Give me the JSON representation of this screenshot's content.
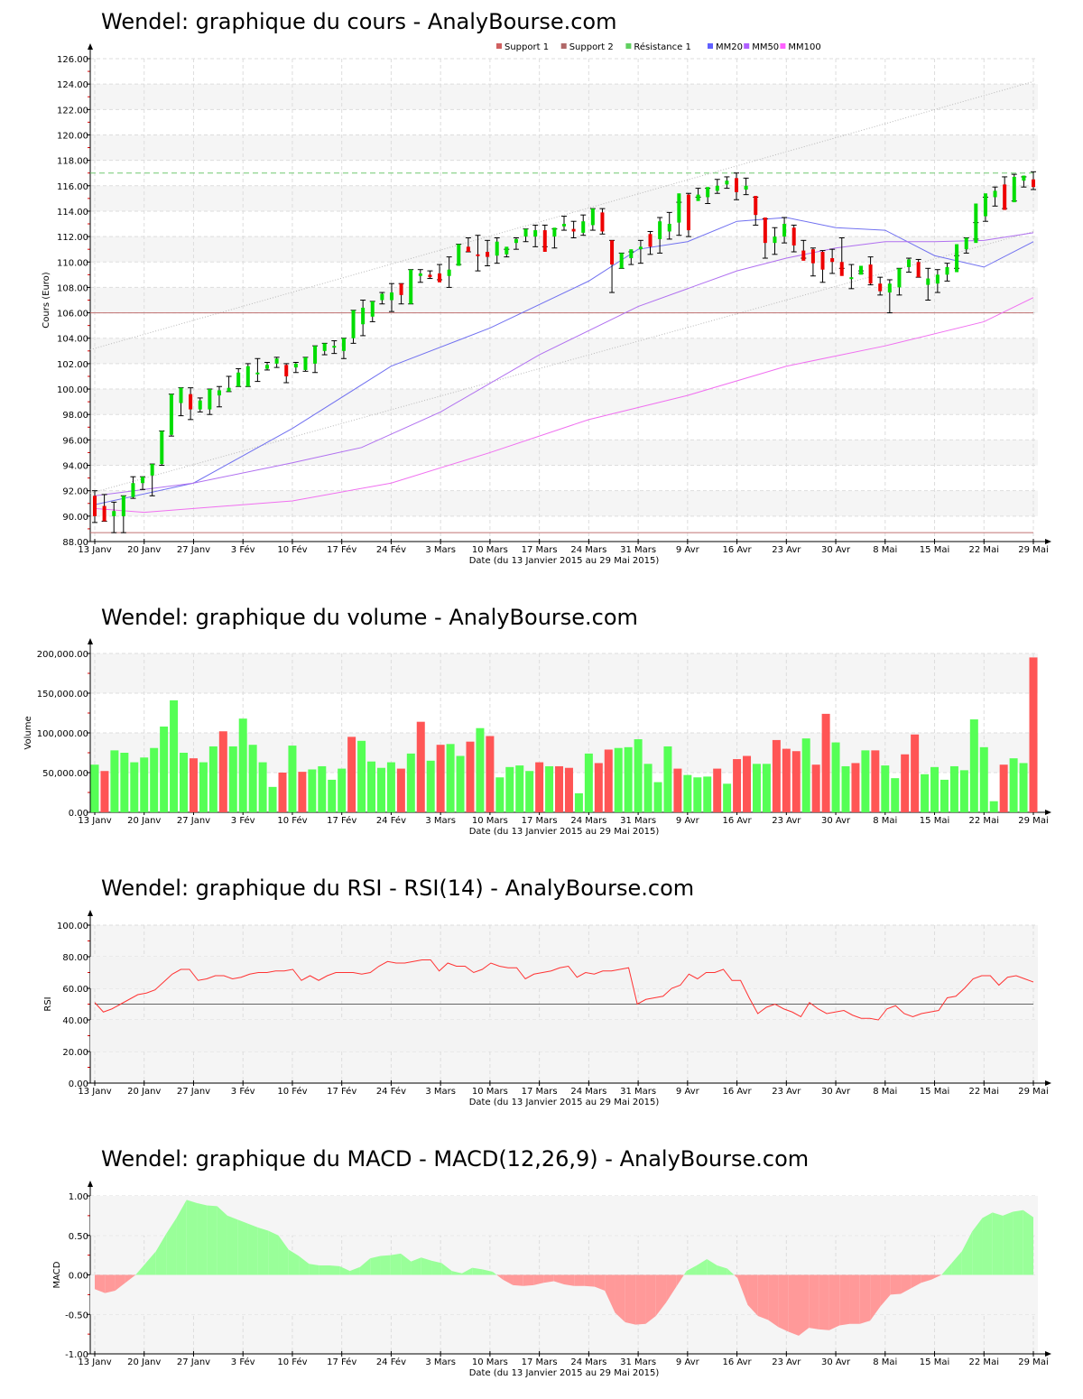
{
  "chart_data": [
    {
      "id": "price",
      "type": "candlestick",
      "title": "Wendel: graphique du cours - AnalyBourse.com",
      "xlabel": "Date (du 13 Janvier 2015 au 29 Mai 2015)",
      "ylabel": "Cours (Euro)",
      "ylim": [
        88,
        126
      ],
      "yticks": [
        "88.00",
        "90.00",
        "92.00",
        "94.00",
        "96.00",
        "98.00",
        "100.00",
        "102.00",
        "104.00",
        "106.00",
        "108.00",
        "110.00",
        "112.00",
        "114.00",
        "116.00",
        "118.00",
        "120.00",
        "122.00",
        "124.00",
        "126.00"
      ],
      "xticks": [
        "13 Janv",
        "20 Janv",
        "27 Janv",
        "3 Fév",
        "10 Fév",
        "17 Fév",
        "24 Fév",
        "3 Mars",
        "10 Mars",
        "17 Mars",
        "24 Mars",
        "31 Mars",
        "9 Avr",
        "16 Avr",
        "23 Avr",
        "30 Avr",
        "8 Mai",
        "15 Mai",
        "22 Mai",
        "29 Mai"
      ],
      "legend": [
        {
          "label": "Support 1",
          "color": "#d06060"
        },
        {
          "label": "Support 2",
          "color": "#b06868"
        },
        {
          "label": "Résistance 1",
          "color": "#60d060"
        },
        {
          "label": "MM20",
          "color": "#6060ff"
        },
        {
          "label": "MM50",
          "color": "#b060ff"
        },
        {
          "label": "MM100",
          "color": "#ff60ff"
        }
      ],
      "levels": {
        "support_1": 106.0,
        "support_2": 88.7,
        "resistance_1": 117.0
      },
      "trend_channel": {
        "upper": [
          103.1,
          124.2
        ],
        "lower": [
          91.8,
          112.4
        ]
      },
      "candles": [
        [
          91.6,
          92.0,
          89.5,
          90.0
        ],
        [
          90.8,
          91.7,
          89.6,
          89.6
        ],
        [
          90.0,
          91.1,
          88.7,
          90.4
        ],
        [
          90.0,
          91.6,
          88.7,
          91.6
        ],
        [
          91.5,
          93.1,
          91.4,
          92.6
        ],
        [
          92.6,
          93.1,
          92.1,
          93.1
        ],
        [
          93.2,
          94.1,
          91.6,
          94.1
        ],
        [
          94.1,
          96.7,
          94.0,
          96.7
        ],
        [
          96.4,
          99.6,
          96.3,
          99.6
        ],
        [
          98.9,
          100.1,
          97.9,
          100.1
        ],
        [
          99.6,
          100.1,
          97.6,
          98.4
        ],
        [
          98.4,
          99.3,
          98.2,
          99.1
        ],
        [
          98.4,
          100.0,
          98.0,
          100.0
        ],
        [
          99.5,
          100.2,
          98.6,
          99.9
        ],
        [
          99.8,
          101.0,
          99.8,
          100.1
        ],
        [
          100.2,
          101.6,
          100.2,
          101.3
        ],
        [
          100.2,
          102.0,
          100.2,
          101.8
        ],
        [
          101.3,
          102.4,
          100.6,
          101.3
        ],
        [
          101.6,
          102.1,
          101.5,
          101.9
        ],
        [
          102.0,
          102.5,
          101.7,
          102.4
        ],
        [
          101.9,
          102.0,
          100.5,
          101.0
        ],
        [
          101.7,
          102.1,
          101.3,
          102.0
        ],
        [
          101.5,
          102.5,
          101.4,
          102.5
        ],
        [
          102.0,
          103.4,
          101.3,
          103.4
        ],
        [
          103.0,
          103.6,
          102.7,
          103.6
        ],
        [
          103.3,
          103.8,
          102.8,
          103.4
        ],
        [
          103.0,
          104.0,
          102.4,
          104.0
        ],
        [
          104.0,
          106.2,
          103.6,
          106.2
        ],
        [
          105.1,
          107.0,
          104.2,
          106.4
        ],
        [
          105.7,
          106.9,
          105.3,
          106.9
        ],
        [
          107.0,
          107.6,
          106.7,
          107.5
        ],
        [
          107.0,
          108.3,
          106.1,
          107.6
        ],
        [
          108.3,
          108.3,
          106.7,
          107.4
        ],
        [
          106.7,
          109.4,
          106.7,
          109.4
        ],
        [
          108.9,
          109.4,
          108.4,
          109.1
        ],
        [
          109.0,
          109.3,
          108.7,
          108.8
        ],
        [
          109.1,
          109.8,
          108.6,
          108.4
        ],
        [
          108.9,
          110.4,
          108.0,
          109.4
        ],
        [
          109.7,
          111.4,
          109.8,
          111.4
        ],
        [
          111.2,
          111.9,
          110.8,
          110.8
        ],
        [
          110.6,
          112.1,
          109.3,
          110.5
        ],
        [
          110.8,
          111.7,
          109.7,
          110.4
        ],
        [
          110.5,
          111.9,
          109.9,
          111.6
        ],
        [
          110.6,
          111.0,
          110.4,
          111.2
        ],
        [
          111.5,
          111.9,
          111.0,
          111.8
        ],
        [
          112.0,
          112.6,
          111.6,
          112.6
        ],
        [
          112.0,
          112.9,
          111.2,
          112.5
        ],
        [
          112.5,
          112.9,
          111.2,
          110.8
        ],
        [
          112.0,
          112.6,
          111.1,
          112.7
        ],
        [
          112.8,
          113.6,
          112.5,
          113.0
        ],
        [
          112.6,
          113.2,
          111.9,
          112.4
        ],
        [
          112.3,
          113.7,
          112.1,
          113.2
        ],
        [
          112.9,
          114.2,
          112.5,
          114.2
        ],
        [
          113.9,
          114.2,
          112.2,
          112.4
        ],
        [
          111.7,
          111.7,
          107.6,
          109.8
        ],
        [
          109.5,
          110.7,
          109.5,
          110.7
        ],
        [
          110.3,
          110.8,
          109.8,
          111.0
        ],
        [
          111.0,
          111.7,
          109.9,
          111.2
        ],
        [
          112.2,
          112.4,
          110.6,
          111.2
        ],
        [
          111.8,
          113.5,
          110.7,
          113.2
        ],
        [
          112.4,
          113.9,
          111.8,
          113.0
        ],
        [
          113.1,
          114.7,
          112.1,
          115.4
        ],
        [
          115.3,
          115.4,
          112.0,
          112.5
        ],
        [
          114.8,
          115.8,
          115.1,
          115.3
        ],
        [
          115.1,
          115.8,
          114.6,
          115.9
        ],
        [
          115.6,
          116.5,
          115.4,
          116.0
        ],
        [
          116.1,
          116.7,
          115.8,
          116.4
        ],
        [
          116.6,
          117.0,
          114.9,
          115.5
        ],
        [
          115.7,
          116.6,
          115.3,
          116.0
        ],
        [
          115.2,
          115.1,
          112.9,
          113.7
        ],
        [
          113.5,
          113.4,
          110.3,
          111.5
        ],
        [
          111.5,
          112.7,
          110.6,
          112.0
        ],
        [
          112.0,
          113.5,
          111.5,
          113.0
        ],
        [
          112.7,
          112.9,
          110.8,
          111.3
        ],
        [
          110.9,
          111.7,
          110.3,
          110.1
        ],
        [
          111.0,
          111.1,
          108.9,
          109.9
        ],
        [
          110.8,
          110.9,
          108.4,
          109.4
        ],
        [
          110.3,
          111.0,
          109.1,
          110.0
        ],
        [
          110.0,
          111.9,
          109.5,
          108.9
        ],
        [
          108.8,
          109.8,
          107.9,
          108.8
        ],
        [
          109.0,
          109.3,
          109.1,
          109.7
        ],
        [
          109.8,
          110.4,
          108.2,
          108.3
        ],
        [
          108.3,
          108.8,
          107.4,
          107.7
        ],
        [
          107.6,
          108.6,
          106.0,
          108.3
        ],
        [
          108.0,
          109.5,
          107.4,
          109.5
        ],
        [
          109.6,
          110.3,
          109.2,
          110.2
        ],
        [
          110.0,
          110.2,
          108.8,
          108.8
        ],
        [
          108.2,
          109.5,
          107.0,
          108.7
        ],
        [
          108.3,
          109.4,
          107.6,
          109.0
        ],
        [
          109.0,
          109.9,
          108.5,
          109.6
        ],
        [
          109.2,
          110.5,
          109.5,
          111.4
        ],
        [
          111.0,
          111.9,
          110.7,
          111.9
        ],
        [
          111.5,
          113.1,
          111.8,
          114.6
        ],
        [
          113.6,
          115.1,
          113.2,
          115.4
        ],
        [
          115.1,
          115.9,
          114.4,
          115.6
        ],
        [
          116.1,
          116.7,
          114.2,
          114.1
        ],
        [
          114.7,
          116.9,
          114.8,
          116.7
        ],
        [
          116.4,
          116.7,
          115.9,
          116.8
        ],
        [
          116.5,
          117.1,
          115.7,
          115.9
        ]
      ],
      "ma20": [
        [
          0,
          90.9
        ],
        [
          10,
          92.6
        ],
        [
          20,
          96.9
        ],
        [
          30,
          101.8
        ],
        [
          40,
          104.8
        ],
        [
          50,
          108.5
        ],
        [
          55,
          111.0
        ],
        [
          60,
          111.6
        ],
        [
          65,
          113.2
        ],
        [
          70,
          113.5
        ],
        [
          75,
          112.7
        ],
        [
          80,
          112.5
        ],
        [
          85,
          110.5
        ],
        [
          90,
          109.6
        ],
        [
          95,
          111.6
        ]
      ],
      "ma50": [
        [
          0,
          91.6
        ],
        [
          10,
          92.6
        ],
        [
          20,
          94.2
        ],
        [
          27,
          95.4
        ],
        [
          35,
          98.2
        ],
        [
          45,
          102.7
        ],
        [
          55,
          106.5
        ],
        [
          65,
          109.3
        ],
        [
          70,
          110.3
        ],
        [
          75,
          111.1
        ],
        [
          80,
          111.6
        ],
        [
          85,
          111.6
        ],
        [
          90,
          111.7
        ],
        [
          95,
          112.3
        ]
      ],
      "ma100": [
        [
          0,
          90.6
        ],
        [
          5,
          90.3
        ],
        [
          10,
          90.6
        ],
        [
          20,
          91.2
        ],
        [
          30,
          92.6
        ],
        [
          40,
          95.0
        ],
        [
          50,
          97.6
        ],
        [
          60,
          99.5
        ],
        [
          70,
          101.8
        ],
        [
          80,
          103.4
        ],
        [
          90,
          105.3
        ],
        [
          95,
          107.2
        ]
      ]
    },
    {
      "id": "volume",
      "type": "bar",
      "title": "Wendel: graphique du volume - AnalyBourse.com",
      "xlabel": "Date (du 13 Janvier 2015 au 29 Mai 2015)",
      "ylabel": "Volume",
      "ylim": [
        0,
        200000
      ],
      "yticks": [
        "0.00",
        "50,000.00",
        "100,000.00",
        "150,000.00",
        "200,000.00"
      ],
      "values": [
        60000,
        52000,
        78000,
        75000,
        63000,
        69000,
        81000,
        108000,
        141000,
        75000,
        68000,
        63000,
        83000,
        102000,
        83000,
        118000,
        85000,
        63000,
        32000,
        50000,
        84000,
        51000,
        54000,
        58000,
        41000,
        55000,
        95000,
        90000,
        64000,
        56000,
        63000,
        55000,
        74000,
        114000,
        65000,
        85000,
        86000,
        71000,
        89000,
        106000,
        96000,
        44000,
        57000,
        59000,
        52000,
        63000,
        58000,
        58000,
        56000,
        24000,
        74000,
        62000,
        79000,
        81000,
        82000,
        92000,
        61000,
        38000,
        83000,
        55000,
        47000,
        44000,
        45000,
        55000,
        36000,
        67000,
        71000,
        61000,
        61000,
        91000,
        80000,
        77000,
        93000,
        60000,
        124000,
        88000,
        58000,
        62000,
        78000,
        78000,
        59000,
        43000,
        73000,
        98000,
        48000,
        57000,
        41000,
        58000,
        53000,
        117000,
        82000,
        14000,
        60000,
        68000,
        62000,
        195000
      ],
      "colors": [
        "g",
        "r",
        "g",
        "g",
        "g",
        "g",
        "g",
        "g",
        "g",
        "g",
        "r",
        "g",
        "g",
        "r",
        "g",
        "g",
        "g",
        "g",
        "g",
        "r",
        "g",
        "r",
        "g",
        "g",
        "g",
        "g",
        "r",
        "g",
        "g",
        "g",
        "g",
        "r",
        "g",
        "r",
        "g",
        "r",
        "g",
        "g",
        "r",
        "g",
        "r",
        "g",
        "g",
        "g",
        "g",
        "r",
        "g",
        "r",
        "r",
        "g",
        "g",
        "r",
        "r",
        "g",
        "g",
        "g",
        "g",
        "g",
        "g",
        "r",
        "g",
        "g",
        "g",
        "r",
        "g",
        "r",
        "r",
        "g",
        "g",
        "r",
        "r",
        "r",
        "g",
        "r",
        "r",
        "g",
        "g",
        "r",
        "g",
        "r",
        "g",
        "g",
        "r",
        "r",
        "g",
        "g",
        "g",
        "g",
        "g",
        "g",
        "g",
        "g",
        "r",
        "g",
        "g",
        "r"
      ]
    },
    {
      "id": "rsi",
      "type": "line",
      "title": "Wendel: graphique du RSI - RSI(14) - AnalyBourse.com",
      "xlabel": "Date (du 13 Janvier 2015 au 29 Mai 2015)",
      "ylabel": "RSI",
      "ylim": [
        0,
        100
      ],
      "yticks": [
        "0.00",
        "20.00",
        "40.00",
        "60.00",
        "80.00",
        "100.00"
      ],
      "reference_line": 50,
      "values": [
        51,
        45,
        47,
        50,
        53,
        56,
        57,
        59,
        64,
        69,
        72,
        72,
        65,
        66,
        68,
        68,
        66,
        67,
        69,
        70,
        70,
        71,
        71,
        72,
        65,
        68,
        65,
        68,
        70,
        70,
        70,
        69,
        70,
        74,
        77,
        76,
        76,
        77,
        78,
        78,
        71,
        76,
        74,
        74,
        70,
        72,
        76,
        74,
        73,
        73,
        66,
        69,
        70,
        71,
        73,
        74,
        67,
        70,
        69,
        71,
        71,
        72,
        73,
        50,
        53,
        54,
        55,
        60,
        62,
        69,
        66,
        70,
        70,
        72,
        65,
        65,
        54,
        44,
        48,
        50,
        47,
        45,
        42,
        51,
        47,
        44,
        45,
        46,
        43,
        41,
        41,
        40,
        47,
        49,
        44,
        42,
        44,
        45,
        46,
        54,
        55,
        60,
        66,
        68,
        68,
        62,
        67,
        68,
        66,
        64
      ]
    },
    {
      "id": "macd",
      "type": "area",
      "title": "Wendel: graphique du MACD - MACD(12,26,9) - AnalyBourse.com",
      "xlabel": "Date (du 13 Janvier 2015 au 29 Mai 2015)",
      "ylabel": "MACD",
      "ylim": [
        -1,
        1
      ],
      "yticks": [
        "-1.00",
        "-0.50",
        "0.00",
        "0.50",
        "1.00"
      ],
      "values": [
        -0.18,
        -0.23,
        -0.2,
        -0.1,
        0.0,
        0.15,
        0.3,
        0.52,
        0.72,
        0.95,
        0.91,
        0.88,
        0.87,
        0.75,
        0.7,
        0.65,
        0.6,
        0.56,
        0.5,
        0.32,
        0.24,
        0.14,
        0.12,
        0.12,
        0.11,
        0.05,
        0.1,
        0.21,
        0.24,
        0.25,
        0.27,
        0.17,
        0.22,
        0.18,
        0.15,
        0.05,
        0.02,
        0.09,
        0.07,
        0.04,
        -0.06,
        -0.13,
        -0.14,
        -0.13,
        -0.1,
        -0.08,
        -0.12,
        -0.14,
        -0.14,
        -0.15,
        -0.2,
        -0.48,
        -0.6,
        -0.63,
        -0.62,
        -0.52,
        -0.35,
        -0.15,
        0.05,
        0.12,
        0.2,
        0.12,
        0.08,
        -0.04,
        -0.38,
        -0.52,
        -0.57,
        -0.66,
        -0.72,
        -0.77,
        -0.67,
        -0.69,
        -0.7,
        -0.64,
        -0.62,
        -0.62,
        -0.58,
        -0.4,
        -0.25,
        -0.24,
        -0.17,
        -0.1,
        -0.06,
        0.0,
        0.15,
        0.3,
        0.55,
        0.72,
        0.79,
        0.75,
        0.8,
        0.82,
        0.73
      ]
    }
  ],
  "colors": {
    "up": "#00dd00",
    "down": "#ee0000",
    "vol_up": "#55ff55",
    "vol_down": "#ff5555",
    "macd_pos": "#99ff99",
    "macd_neg": "#ff9999",
    "rsi_line": "#ff3333",
    "support": "#c07070",
    "resistance": "#70c870",
    "ma20": "#7070f0",
    "ma50": "#b070f0",
    "ma100": "#f070f0",
    "channel": "#b8b8b8"
  }
}
